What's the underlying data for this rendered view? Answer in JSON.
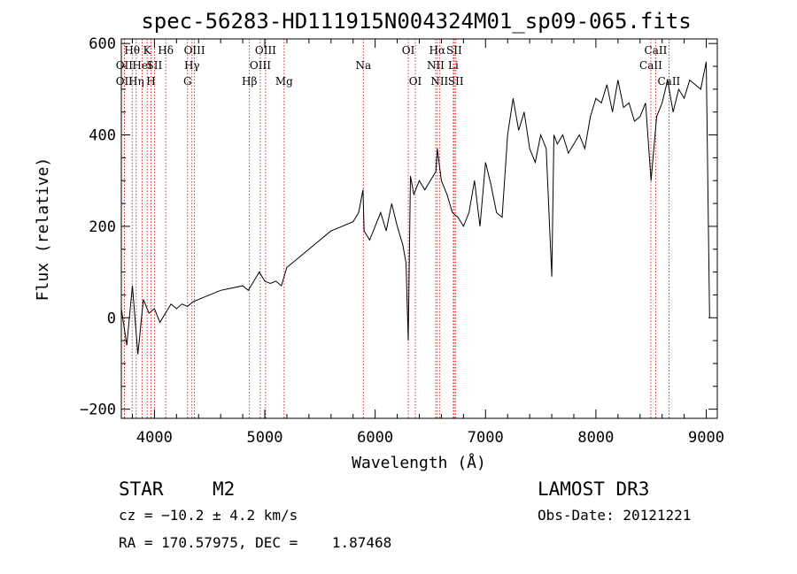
{
  "chart_data": {
    "type": "line",
    "title": "spec-56283-HD111915N004324M01_sp09-065.fits",
    "xlabel": "Wavelength (Å)",
    "ylabel": "Flux (relative)",
    "xlim": [
      3700,
      9100
    ],
    "ylim": [
      -220,
      610
    ],
    "xticks": [
      4000,
      5000,
      6000,
      7000,
      8000,
      9000
    ],
    "yticks": [
      -200,
      0,
      200,
      400,
      600
    ],
    "grid": false,
    "line_color": "#000000",
    "marker_color": "#cc0000",
    "series": [
      {
        "x": [
          3700,
          3750,
          3800,
          3850,
          3900,
          3950,
          4000,
          4050,
          4100,
          4150,
          4200,
          4250,
          4300,
          4350,
          4400,
          4500,
          4600,
          4700,
          4800,
          4850,
          4900,
          4950,
          5000,
          5050,
          5100,
          5150,
          5200,
          5300,
          5400,
          5500,
          5600,
          5700,
          5800,
          5850,
          5890,
          5900,
          5950,
          6000,
          6050,
          6100,
          6150,
          6200,
          6250,
          6280,
          6300,
          6320,
          6350,
          6400,
          6450,
          6500,
          6550,
          6563,
          6600,
          6650,
          6700,
          6750,
          6800,
          6850,
          6900,
          6950,
          7000,
          7050,
          7100,
          7150,
          7200,
          7250,
          7300,
          7350,
          7400,
          7450,
          7500,
          7550,
          7580,
          7600,
          7620,
          7650,
          7700,
          7750,
          7800,
          7850,
          7900,
          7950,
          8000,
          8050,
          8100,
          8150,
          8200,
          8250,
          8300,
          8350,
          8400,
          8450,
          8500,
          8550,
          8600,
          8650,
          8700,
          8750,
          8800,
          8850,
          8900,
          8950,
          9000,
          9030
        ],
        "values": [
          20,
          -60,
          70,
          -80,
          40,
          10,
          20,
          -10,
          10,
          30,
          20,
          30,
          25,
          35,
          40,
          50,
          60,
          65,
          70,
          60,
          80,
          100,
          80,
          75,
          80,
          70,
          110,
          130,
          150,
          170,
          190,
          200,
          210,
          230,
          280,
          190,
          170,
          200,
          230,
          190,
          250,
          200,
          160,
          120,
          -50,
          310,
          270,
          300,
          280,
          300,
          320,
          370,
          300,
          270,
          230,
          220,
          200,
          230,
          300,
          200,
          340,
          290,
          230,
          220,
          400,
          480,
          410,
          450,
          370,
          340,
          400,
          370,
          200,
          90,
          400,
          380,
          400,
          360,
          380,
          400,
          370,
          440,
          480,
          470,
          510,
          450,
          520,
          460,
          470,
          430,
          440,
          470,
          300,
          440,
          470,
          520,
          450,
          500,
          480,
          520,
          510,
          500,
          560,
          0
        ]
      }
    ],
    "line_markers": [
      {
        "wavelength": 3727,
        "label": "OII",
        "row": 2
      },
      {
        "wavelength": 3727,
        "label": "OII",
        "row": 3
      },
      {
        "wavelength": 3798,
        "label": "Hθ",
        "row": 1
      },
      {
        "wavelength": 3835,
        "label": "Hη",
        "row": 3
      },
      {
        "wavelength": 3889,
        "label": "HeI",
        "row": 2
      },
      {
        "wavelength": 3934,
        "label": "K",
        "row": 1
      },
      {
        "wavelength": 3969,
        "label": "H",
        "row": 3
      },
      {
        "wavelength": 4000,
        "label": "SII",
        "row": 2
      },
      {
        "wavelength": 4102,
        "label": "Hδ",
        "row": 1
      },
      {
        "wavelength": 4300,
        "label": "G",
        "row": 3
      },
      {
        "wavelength": 4340,
        "label": "Hγ",
        "row": 2
      },
      {
        "wavelength": 4363,
        "label": "OIII",
        "row": 1
      },
      {
        "wavelength": 4861,
        "label": "Hβ",
        "row": 3
      },
      {
        "wavelength": 4959,
        "label": "OIII",
        "row": 2
      },
      {
        "wavelength": 5007,
        "label": "OIII",
        "row": 1
      },
      {
        "wavelength": 5175,
        "label": "Mg",
        "row": 3
      },
      {
        "wavelength": 5893,
        "label": "Na",
        "row": 2
      },
      {
        "wavelength": 6300,
        "label": "OI",
        "row": 1
      },
      {
        "wavelength": 6364,
        "label": "OI",
        "row": 3
      },
      {
        "wavelength": 6548,
        "label": "NII",
        "row": 2
      },
      {
        "wavelength": 6563,
        "label": "Hα",
        "row": 1
      },
      {
        "wavelength": 6583,
        "label": "NII",
        "row": 3
      },
      {
        "wavelength": 6708,
        "label": "Li",
        "row": 2
      },
      {
        "wavelength": 6716,
        "label": "SII",
        "row": 1
      },
      {
        "wavelength": 6731,
        "label": "SII",
        "row": 3
      },
      {
        "wavelength": 8498,
        "label": "CaII",
        "row": 2
      },
      {
        "wavelength": 8542,
        "label": "CaII",
        "row": 1
      },
      {
        "wavelength": 8662,
        "label": "CaII",
        "row": 3
      }
    ]
  },
  "info": {
    "object_type": "STAR",
    "subclass": "M2",
    "survey": "LAMOST DR3",
    "redshift": "cz = −10.2 ± 4.2 km/s",
    "obs_date": "Obs-Date: 20121221",
    "coords": "RA = 170.57975, DEC =    1.87468"
  }
}
